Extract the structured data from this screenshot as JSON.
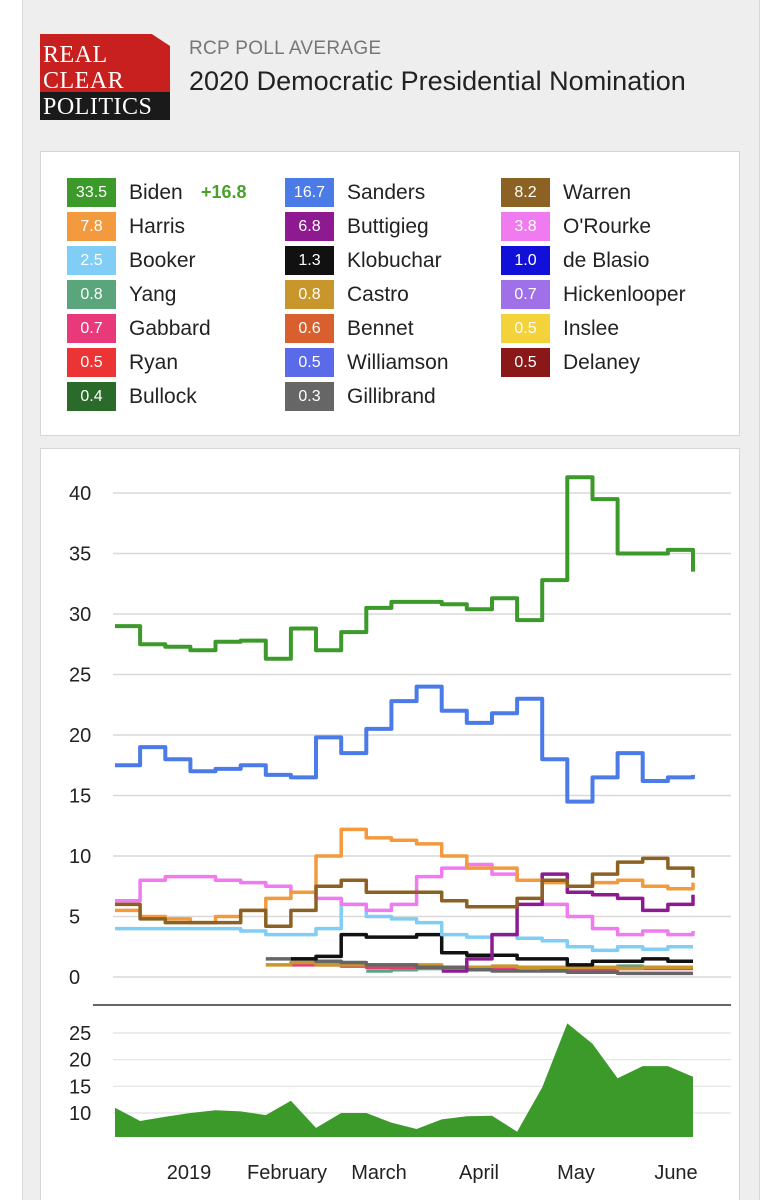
{
  "header": {
    "logo_lines": [
      "REAL",
      "CLEAR",
      "POLITICS"
    ],
    "subtitle": "RCP POLL AVERAGE",
    "title": "2020 Democratic Presidential Nomination"
  },
  "legend": [
    {
      "name": "Biden",
      "value": "33.5",
      "color": "#3c9a2a",
      "spread": "+16.8"
    },
    {
      "name": "Sanders",
      "value": "16.7",
      "color": "#4a7be6"
    },
    {
      "name": "Warren",
      "value": "8.2",
      "color": "#8b6224"
    },
    {
      "name": "Harris",
      "value": "7.8",
      "color": "#f39a3e"
    },
    {
      "name": "Buttigieg",
      "value": "6.8",
      "color": "#8e1a91"
    },
    {
      "name": "O'Rourke",
      "value": "3.8",
      "color": "#f07af0"
    },
    {
      "name": "Booker",
      "value": "2.5",
      "color": "#80cdf5"
    },
    {
      "name": "Klobuchar",
      "value": "1.3",
      "color": "#111111"
    },
    {
      "name": "de Blasio",
      "value": "1.0",
      "color": "#1010d8"
    },
    {
      "name": "Yang",
      "value": "0.8",
      "color": "#5aa57c"
    },
    {
      "name": "Castro",
      "value": "0.8",
      "color": "#c8962a"
    },
    {
      "name": "Hickenlooper",
      "value": "0.7",
      "color": "#a070e8"
    },
    {
      "name": "Gabbard",
      "value": "0.7",
      "color": "#e83a7a"
    },
    {
      "name": "Bennet",
      "value": "0.6",
      "color": "#d9602e"
    },
    {
      "name": "Inslee",
      "value": "0.5",
      "color": "#f3d23a"
    },
    {
      "name": "Ryan",
      "value": "0.5",
      "color": "#ec3434"
    },
    {
      "name": "Williamson",
      "value": "0.5",
      "color": "#5a6ae8"
    },
    {
      "name": "Delaney",
      "value": "0.5",
      "color": "#8a1818"
    },
    {
      "name": "Bullock",
      "value": "0.4",
      "color": "#2a6a2a"
    },
    {
      "name": "Gillibrand",
      "value": "0.3",
      "color": "#666666"
    }
  ],
  "chart_data": [
    {
      "type": "line",
      "title": "",
      "x_labels": [
        "2019",
        "February",
        "March",
        "April",
        "May",
        "June"
      ],
      "x": [
        "Jan 1",
        "Jan 8",
        "Jan 15",
        "Jan 22",
        "Jan 29",
        "Feb 5",
        "Feb 12",
        "Feb 19",
        "Feb 26",
        "Mar 5",
        "Mar 12",
        "Mar 19",
        "Mar 26",
        "Apr 2",
        "Apr 9",
        "Apr 16",
        "Apr 23",
        "Apr 30",
        "May 7",
        "May 14",
        "May 21",
        "May 28",
        "Jun 4",
        "Jun 11"
      ],
      "ylim": [
        0,
        42
      ],
      "yticks": [
        0,
        5,
        10,
        15,
        20,
        25,
        30,
        35,
        40
      ],
      "grid": true,
      "series": [
        {
          "name": "Biden",
          "color": "#3c9a2a",
          "values": [
            29,
            27.5,
            27.3,
            27,
            27.7,
            27.8,
            26.3,
            28.8,
            27,
            28.5,
            30.5,
            31,
            31,
            30.8,
            30.4,
            31.3,
            29.5,
            32.8,
            41.3,
            39.5,
            35,
            35,
            35.3,
            33.5
          ]
        },
        {
          "name": "Sanders",
          "color": "#4a7be6",
          "values": [
            17.5,
            19,
            18,
            17,
            17.2,
            17.5,
            16.7,
            16.5,
            19.8,
            18.5,
            20.5,
            22.8,
            24,
            22,
            21,
            21.8,
            23,
            18,
            14.5,
            16.5,
            18.5,
            16.2,
            16.5,
            16.7
          ]
        },
        {
          "name": "Warren",
          "color": "#8b6224",
          "values": [
            6,
            4.8,
            4.5,
            4.5,
            4.5,
            5.5,
            4.2,
            5.5,
            7.5,
            8,
            7,
            7,
            7,
            6.3,
            5.8,
            5.8,
            6.5,
            8,
            7.5,
            8.5,
            9.5,
            9.8,
            9,
            8.2
          ]
        },
        {
          "name": "Harris",
          "color": "#f39a3e",
          "values": [
            5.5,
            5,
            4.8,
            4.5,
            5,
            5.5,
            6.5,
            7,
            10,
            12.2,
            11.5,
            11.3,
            11,
            10,
            9,
            9,
            8,
            7.8,
            7.5,
            7.8,
            8,
            7.5,
            7.3,
            7.8
          ]
        },
        {
          "name": "Buttigieg",
          "color": "#8e1a91",
          "values": [
            null,
            null,
            null,
            null,
            null,
            null,
            null,
            null,
            null,
            null,
            null,
            null,
            null,
            0.5,
            1.5,
            3.5,
            6,
            8.5,
            7,
            6.8,
            6.5,
            5.5,
            6,
            6.8
          ]
        },
        {
          "name": "O'Rourke",
          "color": "#f07af0",
          "values": [
            6.3,
            8,
            8.3,
            8.3,
            8,
            7.8,
            7.5,
            7,
            6.5,
            6,
            5.5,
            6,
            8.3,
            9,
            9.3,
            8.5,
            8,
            6,
            5,
            4,
            3.5,
            3.8,
            3.5,
            3.8
          ]
        },
        {
          "name": "Booker",
          "color": "#80cdf5",
          "values": [
            4,
            4,
            4,
            4,
            4,
            3.8,
            3.5,
            3.5,
            4,
            6,
            5,
            4.8,
            4.5,
            3.5,
            3.3,
            3.5,
            3.2,
            3,
            2.5,
            2.2,
            2.5,
            2.3,
            2.5,
            2.5
          ]
        },
        {
          "name": "Klobuchar",
          "color": "#111111",
          "values": [
            null,
            null,
            null,
            null,
            null,
            null,
            null,
            1.5,
            1.7,
            3.5,
            3.3,
            3.3,
            3.5,
            2,
            1.8,
            1.8,
            1.5,
            1.5,
            1,
            1.3,
            1.3,
            1.5,
            1.3,
            1.3
          ]
        },
        {
          "name": "Gillibrand",
          "color": "#666666",
          "values": [
            null,
            null,
            null,
            null,
            null,
            null,
            1.5,
            1.5,
            1.3,
            1.2,
            1,
            1,
            0.8,
            0.8,
            0.6,
            0.5,
            0.5,
            0.5,
            0.4,
            0.4,
            0.3,
            0.3,
            0.3,
            0.3
          ]
        },
        {
          "name": "Castro",
          "color": "#c8962a",
          "values": [
            null,
            null,
            null,
            null,
            null,
            null,
            1,
            1.2,
            1,
            1,
            1,
            1,
            1,
            0.8,
            0.8,
            0.9,
            0.8,
            0.8,
            0.8,
            0.8,
            0.7,
            0.8,
            0.8,
            0.8
          ]
        },
        {
          "name": "Gabbard",
          "color": "#e83a7a",
          "values": [
            null,
            null,
            null,
            null,
            null,
            null,
            null,
            1,
            1,
            0.9,
            0.8,
            0.8,
            0.8,
            0.8,
            0.7,
            0.7,
            0.8,
            0.6,
            0.5,
            0.6,
            0.7,
            0.7,
            0.7,
            0.7
          ]
        },
        {
          "name": "Yang",
          "color": "#5aa57c",
          "values": [
            null,
            null,
            null,
            null,
            null,
            null,
            null,
            null,
            null,
            null,
            0.5,
            0.6,
            0.7,
            0.8,
            0.8,
            0.8,
            0.8,
            0.7,
            0.6,
            0.8,
            0.9,
            0.8,
            0.8,
            0.8
          ]
        }
      ]
    },
    {
      "type": "area",
      "title": "",
      "name": "Biden spread",
      "color": "#3c9a2a",
      "x": [
        "Jan 1",
        "Jan 8",
        "Jan 15",
        "Jan 22",
        "Jan 29",
        "Feb 5",
        "Feb 12",
        "Feb 19",
        "Feb 26",
        "Mar 5",
        "Mar 12",
        "Mar 19",
        "Mar 26",
        "Apr 2",
        "Apr 9",
        "Apr 16",
        "Apr 23",
        "Apr 30",
        "May 7",
        "May 14",
        "May 21",
        "May 28",
        "Jun 4",
        "Jun 11"
      ],
      "ylim": [
        5,
        27
      ],
      "yticks": [
        10,
        15,
        20,
        25
      ],
      "values": [
        11,
        8.5,
        9.3,
        10,
        10.5,
        10.3,
        9.6,
        12.3,
        7.2,
        10,
        10,
        8.2,
        7,
        8.8,
        9.4,
        9.5,
        6.5,
        14.8,
        26.8,
        23,
        16.5,
        18.8,
        18.8,
        16.8
      ]
    }
  ]
}
